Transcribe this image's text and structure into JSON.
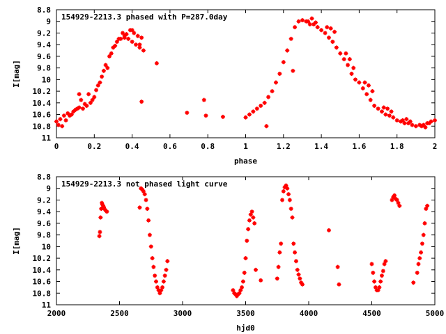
{
  "chart_data": [
    {
      "type": "scatter",
      "title": "154929-2213.3 phased with P=287.0day",
      "xlabel": "phase",
      "ylabel": "I[mag]",
      "xlim": [
        0,
        2
      ],
      "ylim": [
        8.8,
        11
      ],
      "y_inverted": true,
      "xticks": [
        "0",
        "0.2",
        "0.4",
        "0.6",
        "0.8",
        "1",
        "1.2",
        "1.4",
        "1.6",
        "1.8",
        "2"
      ],
      "yticks": [
        "8.8",
        "9",
        "9.2",
        "9.4",
        "9.6",
        "9.8",
        "10",
        "10.2",
        "10.4",
        "10.6",
        "10.8",
        "11"
      ],
      "grid": false,
      "point_color": "#ff0000",
      "x": [
        0.0,
        0.02,
        0.04,
        0.06,
        0.08,
        0.1,
        0.12,
        0.14,
        0.16,
        0.18,
        0.2,
        0.22,
        0.24,
        0.26,
        0.28,
        0.3,
        0.32,
        0.34,
        0.36,
        0.38,
        0.4,
        0.42,
        0.44,
        0.46,
        0.01,
        0.05,
        0.09,
        0.13,
        0.17,
        0.21,
        0.25,
        0.29,
        0.33,
        0.37,
        0.41,
        0.45,
        0.03,
        0.07,
        0.11,
        0.15,
        0.19,
        0.23,
        0.27,
        0.31,
        0.35,
        0.39,
        0.43,
        0.53,
        0.69,
        0.78,
        0.79,
        0.88,
        1.0,
        1.02,
        1.04,
        1.06,
        1.08,
        1.1,
        1.12,
        1.14,
        1.16,
        1.18,
        1.2,
        1.22,
        1.24,
        1.26,
        1.28,
        1.3,
        1.32,
        1.34,
        1.36,
        1.38,
        1.4,
        1.42,
        1.44,
        1.46,
        1.48,
        1.5,
        1.52,
        1.54,
        1.56,
        1.58,
        1.6,
        1.62,
        1.64,
        1.66,
        1.68,
        1.7,
        1.72,
        1.74,
        1.76,
        1.78,
        1.8,
        1.82,
        1.84,
        1.86,
        1.88,
        1.9,
        1.92,
        1.94,
        1.96,
        1.98,
        2.0,
        1.11,
        1.25,
        1.35,
        1.45,
        1.55,
        1.65,
        1.75,
        1.85,
        1.95,
        1.33,
        1.37,
        1.43,
        1.47,
        1.53,
        1.57,
        1.63,
        1.67,
        1.73,
        1.77,
        1.83,
        1.87,
        1.93,
        1.97,
        0.12,
        0.45,
        0.36,
        0.4,
        0.44
      ],
      "y": [
        10.72,
        10.68,
        10.62,
        10.58,
        10.6,
        10.52,
        10.48,
        10.5,
        10.45,
        10.4,
        10.3,
        10.1,
        9.95,
        9.75,
        9.6,
        9.45,
        9.35,
        9.3,
        9.28,
        9.3,
        9.35,
        9.4,
        9.45,
        9.5,
        10.78,
        10.7,
        10.55,
        10.35,
        10.25,
        10.18,
        9.85,
        9.55,
        9.3,
        9.22,
        9.2,
        9.28,
        10.8,
        10.62,
        10.5,
        10.42,
        10.35,
        10.05,
        9.8,
        9.42,
        9.2,
        9.15,
        9.25,
        9.72,
        10.57,
        10.35,
        10.62,
        10.64,
        10.65,
        10.6,
        10.55,
        10.5,
        10.45,
        10.4,
        10.3,
        10.2,
        10.05,
        9.9,
        9.7,
        9.5,
        9.3,
        9.1,
        9.0,
        8.98,
        9.0,
        9.05,
        9.05,
        9.1,
        9.15,
        9.2,
        9.28,
        9.35,
        9.45,
        9.55,
        9.65,
        9.75,
        9.9,
        10.0,
        10.05,
        10.15,
        10.25,
        10.35,
        10.45,
        10.5,
        10.55,
        10.6,
        10.62,
        10.65,
        10.7,
        10.72,
        10.75,
        10.75,
        10.78,
        10.8,
        10.78,
        10.78,
        10.75,
        10.72,
        10.7,
        10.8,
        9.85,
        8.95,
        9.12,
        9.65,
        10.1,
        10.5,
        10.68,
        10.82,
        9.0,
        9.02,
        9.1,
        9.18,
        9.55,
        9.8,
        10.05,
        10.2,
        10.48,
        10.55,
        10.7,
        10.72,
        10.8,
        10.75,
        10.25,
        10.38,
        9.25,
        9.15,
        9.4
      ]
    },
    {
      "type": "scatter",
      "title": "154929-2213.3 not phased light curve",
      "xlabel": "hjd0",
      "ylabel": "I[mag]",
      "xlim": [
        2000,
        5000
      ],
      "ylim": [
        8.8,
        11
      ],
      "y_inverted": true,
      "xticks": [
        "2000",
        "2500",
        "3000",
        "3500",
        "4000",
        "4500",
        "5000"
      ],
      "yticks": [
        "8.8",
        "9",
        "9.2",
        "9.4",
        "9.6",
        "9.8",
        "10",
        "10.2",
        "10.4",
        "10.6",
        "10.8",
        "11"
      ],
      "grid": false,
      "point_color": "#ff0000",
      "x": [
        2340,
        2345,
        2350,
        2355,
        2360,
        2365,
        2370,
        2375,
        2380,
        2390,
        2400,
        2660,
        2670,
        2680,
        2690,
        2700,
        2710,
        2720,
        2730,
        2740,
        2750,
        2760,
        2770,
        2780,
        2790,
        2800,
        2810,
        2820,
        2830,
        2840,
        2850,
        2860,
        2870,
        2880,
        3400,
        3410,
        3420,
        3430,
        3440,
        3450,
        3460,
        3470,
        3480,
        3490,
        3500,
        3510,
        3520,
        3530,
        3540,
        3550,
        3560,
        3570,
        3580,
        3620,
        3750,
        3760,
        3770,
        3780,
        3790,
        3800,
        3810,
        3820,
        3830,
        3840,
        3850,
        3860,
        3870,
        3880,
        3890,
        3900,
        3910,
        3920,
        3930,
        3940,
        3950,
        4160,
        4230,
        4240,
        4500,
        4510,
        4520,
        4530,
        4540,
        4550,
        4560,
        4570,
        4580,
        4590,
        4600,
        4610,
        4660,
        4670,
        4680,
        4690,
        4700,
        4710,
        4720,
        4830,
        4860,
        4870,
        4880,
        4890,
        4900,
        4910,
        4920,
        4930,
        4940
      ],
      "y": [
        9.82,
        9.75,
        9.5,
        9.35,
        9.25,
        9.28,
        9.3,
        9.32,
        9.35,
        9.38,
        9.4,
        9.33,
        9.0,
        9.02,
        9.05,
        9.1,
        9.2,
        9.35,
        9.55,
        9.8,
        10.0,
        10.2,
        10.35,
        10.5,
        10.6,
        10.7,
        10.75,
        10.8,
        10.75,
        10.7,
        10.6,
        10.5,
        10.4,
        10.25,
        10.75,
        10.8,
        10.82,
        10.85,
        10.82,
        10.8,
        10.75,
        10.7,
        10.6,
        10.45,
        10.2,
        9.9,
        9.7,
        9.55,
        9.45,
        9.4,
        9.5,
        9.6,
        10.4,
        10.58,
        10.55,
        10.35,
        10.1,
        9.95,
        9.2,
        9.05,
        8.98,
        8.95,
        9.0,
        9.1,
        9.2,
        9.35,
        9.5,
        9.95,
        10.1,
        10.25,
        10.4,
        10.48,
        10.55,
        10.62,
        10.65,
        9.72,
        10.35,
        10.65,
        10.3,
        10.45,
        10.6,
        10.7,
        10.75,
        10.75,
        10.7,
        10.6,
        10.5,
        10.42,
        10.3,
        10.25,
        9.2,
        9.15,
        9.12,
        9.18,
        9.2,
        9.25,
        9.3,
        10.62,
        10.45,
        10.3,
        10.2,
        10.1,
        9.95,
        9.8,
        9.6,
        9.35,
        9.3
      ]
    }
  ]
}
